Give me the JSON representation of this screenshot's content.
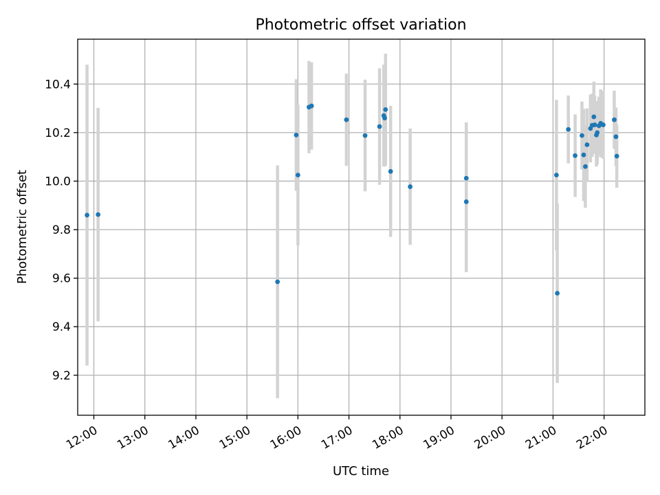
{
  "chart_data": {
    "type": "scatter",
    "title": "Photometric offset variation",
    "xlabel": "UTC time",
    "ylabel": "Photometric offset",
    "xlim": [
      "11:41",
      "22:48"
    ],
    "ylim": [
      9.035,
      10.585
    ],
    "x_ticks": [
      "12:00",
      "13:00",
      "14:00",
      "15:00",
      "16:00",
      "17:00",
      "18:00",
      "19:00",
      "20:00",
      "21:00",
      "22:00"
    ],
    "y_ticks": [
      "9.2",
      "9.4",
      "9.6",
      "9.8",
      "10.0",
      "10.2",
      "10.4"
    ],
    "y_tick_values": [
      9.2,
      9.4,
      9.6,
      9.8,
      10.0,
      10.2,
      10.4
    ],
    "grid": true,
    "marker_color": "#1f77b4",
    "errorbar_color": "#d3d3d3",
    "points": [
      {
        "x": "11:52",
        "y": 9.86,
        "yerr": 0.62
      },
      {
        "x": "12:05",
        "y": 9.862,
        "yerr": 0.44
      },
      {
        "x": "15:36",
        "y": 9.585,
        "yerr": 0.48
      },
      {
        "x": "15:58",
        "y": 10.19,
        "yerr": 0.23
      },
      {
        "x": "16:00",
        "y": 10.025,
        "yerr": 0.29
      },
      {
        "x": "16:13",
        "y": 10.305,
        "yerr": 0.19
      },
      {
        "x": "16:16",
        "y": 10.31,
        "yerr": 0.18
      },
      {
        "x": "16:57",
        "y": 10.253,
        "yerr": 0.19
      },
      {
        "x": "17:19",
        "y": 10.188,
        "yerr": 0.23
      },
      {
        "x": "17:36",
        "y": 10.225,
        "yerr": 0.24
      },
      {
        "x": "17:41",
        "y": 10.27,
        "yerr": 0.21
      },
      {
        "x": "17:42",
        "y": 10.26,
        "yerr": 0.2
      },
      {
        "x": "17:43",
        "y": 10.295,
        "yerr": 0.23
      },
      {
        "x": "17:49",
        "y": 10.04,
        "yerr": 0.27
      },
      {
        "x": "18:12",
        "y": 9.977,
        "yerr": 0.24
      },
      {
        "x": "19:18",
        "y": 10.012,
        "yerr": 0.23
      },
      {
        "x": "19:18",
        "y": 9.915,
        "yerr": 0.29
      },
      {
        "x": "21:04",
        "y": 10.025,
        "yerr": 0.31
      },
      {
        "x": "21:05",
        "y": 9.538,
        "yerr": 0.37
      },
      {
        "x": "21:18",
        "y": 10.213,
        "yerr": 0.14
      },
      {
        "x": "21:26",
        "y": 10.105,
        "yerr": 0.17
      },
      {
        "x": "21:34",
        "y": 10.188,
        "yerr": 0.14
      },
      {
        "x": "21:36",
        "y": 10.108,
        "yerr": 0.19
      },
      {
        "x": "21:38",
        "y": 10.06,
        "yerr": 0.17
      },
      {
        "x": "21:40",
        "y": 10.15,
        "yerr": 0.15
      },
      {
        "x": "21:44",
        "y": 10.217,
        "yerr": 0.14
      },
      {
        "x": "21:46",
        "y": 10.23,
        "yerr": 0.13
      },
      {
        "x": "21:48",
        "y": 10.265,
        "yerr": 0.145
      },
      {
        "x": "21:49",
        "y": 10.232,
        "yerr": 0.12
      },
      {
        "x": "21:51",
        "y": 10.19,
        "yerr": 0.13
      },
      {
        "x": "21:52",
        "y": 10.2,
        "yerr": 0.13
      },
      {
        "x": "21:54",
        "y": 10.228,
        "yerr": 0.12
      },
      {
        "x": "21:56",
        "y": 10.238,
        "yerr": 0.14
      },
      {
        "x": "21:59",
        "y": 10.232,
        "yerr": 0.14
      },
      {
        "x": "22:12",
        "y": 10.253,
        "yerr": 0.12
      },
      {
        "x": "22:14",
        "y": 10.183,
        "yerr": 0.12
      },
      {
        "x": "22:15",
        "y": 10.103,
        "yerr": 0.13
      }
    ]
  }
}
